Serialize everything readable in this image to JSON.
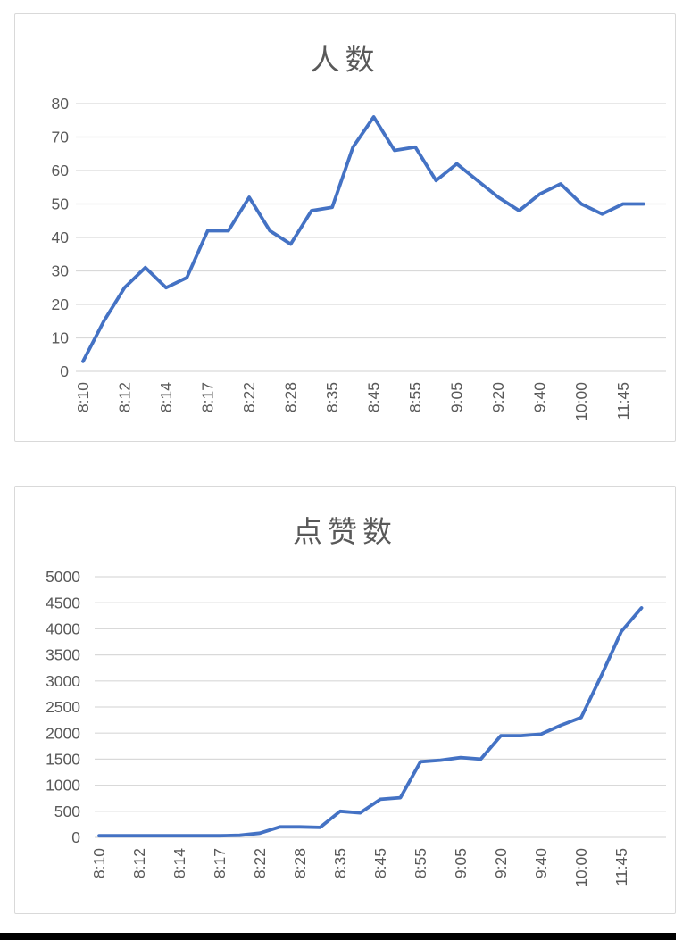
{
  "page": {
    "background": "#ffffff",
    "footer_bar_color": "#000000"
  },
  "chart_data": [
    {
      "type": "line",
      "title": "人数",
      "categories": [
        "8:10",
        "8:12",
        "8:14",
        "8:17",
        "8:22",
        "8:28",
        "8:35",
        "8:45",
        "8:55",
        "9:05",
        "9:20",
        "9:40",
        "10:00",
        "11:45"
      ],
      "label_every_n_points": 2,
      "values": [
        3,
        15,
        25,
        31,
        25,
        28,
        42,
        42,
        52,
        42,
        38,
        48,
        49,
        67,
        76,
        66,
        67,
        57,
        62,
        57,
        52,
        48,
        53,
        56,
        50,
        47,
        50,
        50
      ],
      "ylim": [
        0,
        80
      ],
      "ytick_step": 10,
      "y_ticks": [
        "0",
        "10",
        "20",
        "30",
        "40",
        "50",
        "60",
        "70",
        "80"
      ],
      "grid": true,
      "legend": "none",
      "line_color": "#4472C4",
      "grid_color": "#d9d9d9",
      "label_color": "#595959"
    },
    {
      "type": "line",
      "title": "点赞数",
      "categories": [
        "8:10",
        "8:12",
        "8:14",
        "8:17",
        "8:22",
        "8:28",
        "8:35",
        "8:45",
        "8:55",
        "9:05",
        "9:20",
        "9:40",
        "10:00",
        "11:45"
      ],
      "label_every_n_points": 2,
      "values": [
        30,
        30,
        30,
        30,
        30,
        30,
        30,
        40,
        80,
        200,
        200,
        190,
        500,
        470,
        730,
        760,
        1450,
        1480,
        1530,
        1500,
        1950,
        1950,
        1980,
        2150,
        2300,
        3100,
        3950,
        4400
      ],
      "ylim": [
        0,
        5000
      ],
      "ytick_step": 500,
      "y_ticks": [
        "0",
        "500",
        "1000",
        "1500",
        "2000",
        "2500",
        "3000",
        "3500",
        "4000",
        "4500",
        "5000"
      ],
      "grid": true,
      "legend": "none",
      "line_color": "#4472C4",
      "grid_color": "#d9d9d9",
      "label_color": "#595959"
    }
  ]
}
